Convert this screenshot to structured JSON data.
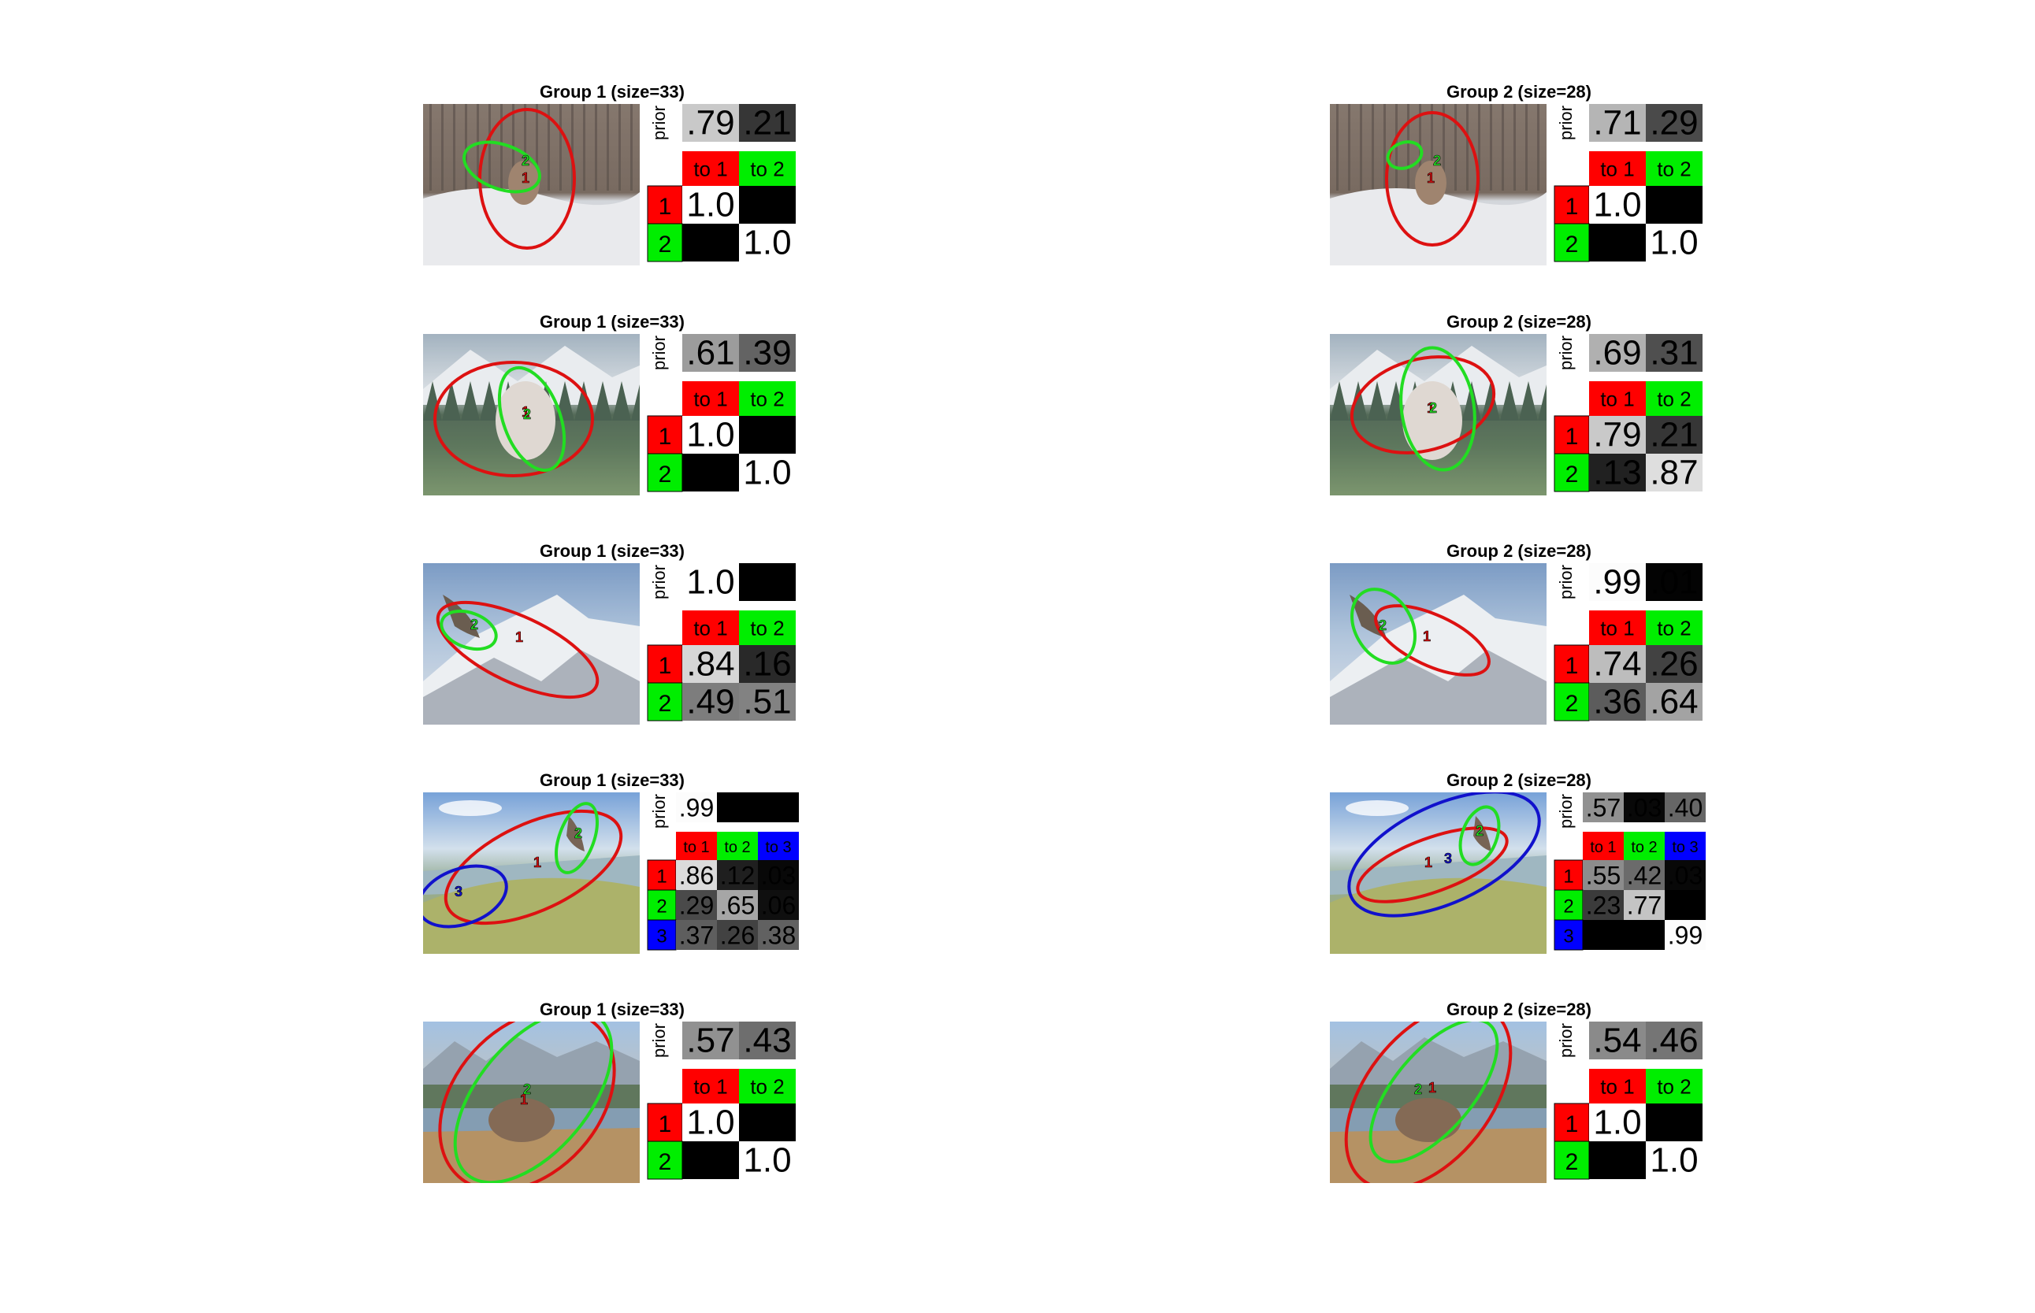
{
  "colors": {
    "state1": "#ff0000",
    "state2": "#00ee00",
    "state3": "#0000ff",
    "ellipse1": "#dd1111",
    "ellipse2": "#22dd22",
    "ellipse3": "#1111cc"
  },
  "prior_label": "prior",
  "panels": [
    {
      "group": 1,
      "title": "Group 1 (size=33)",
      "scene": "snow-deer",
      "prior": [
        ".79",
        ".21"
      ],
      "prior_vals": [
        0.79,
        0.21
      ],
      "headers": [
        "to 1",
        "to 2"
      ],
      "rows": [
        "1",
        "2"
      ],
      "matrix": [
        [
          "1.0",
          ""
        ],
        [
          "",
          "1.0"
        ]
      ],
      "matrix_vals": [
        [
          1.0,
          0
        ],
        [
          0,
          1.0
        ]
      ],
      "markers": [
        "1",
        "2"
      ]
    },
    {
      "group": 2,
      "title": "Group 2 (size=28)",
      "scene": "snow-deer",
      "prior": [
        ".71",
        ".29"
      ],
      "prior_vals": [
        0.71,
        0.29
      ],
      "headers": [
        "to 1",
        "to 2"
      ],
      "rows": [
        "1",
        "2"
      ],
      "matrix": [
        [
          "1.0",
          ""
        ],
        [
          "",
          "1.0"
        ]
      ],
      "matrix_vals": [
        [
          1.0,
          0
        ],
        [
          0,
          1.0
        ]
      ],
      "markers": [
        "1",
        "2"
      ]
    },
    {
      "group": 1,
      "title": "Group 1 (size=33)",
      "scene": "meadow-cow",
      "prior": [
        ".61",
        ".39"
      ],
      "prior_vals": [
        0.61,
        0.39
      ],
      "headers": [
        "to 1",
        "to 2"
      ],
      "rows": [
        "1",
        "2"
      ],
      "matrix": [
        [
          "1.0",
          ""
        ],
        [
          "",
          "1.0"
        ]
      ],
      "matrix_vals": [
        [
          1.0,
          0
        ],
        [
          0,
          1.0
        ]
      ],
      "markers": [
        "1",
        "2"
      ]
    },
    {
      "group": 2,
      "title": "Group 2 (size=28)",
      "scene": "meadow-cow",
      "prior": [
        ".69",
        ".31"
      ],
      "prior_vals": [
        0.69,
        0.31
      ],
      "headers": [
        "to 1",
        "to 2"
      ],
      "rows": [
        "1",
        "2"
      ],
      "matrix": [
        [
          ".79",
          ".21"
        ],
        [
          ".13",
          ".87"
        ]
      ],
      "matrix_vals": [
        [
          0.79,
          0.21
        ],
        [
          0.13,
          0.87
        ]
      ],
      "markers": [
        "1",
        "2"
      ]
    },
    {
      "group": 1,
      "title": "Group 1 (size=33)",
      "scene": "eagle-mountain",
      "prior": [
        "1.0",
        ""
      ],
      "prior_vals": [
        1.0,
        0
      ],
      "headers": [
        "to 1",
        "to 2"
      ],
      "rows": [
        "1",
        "2"
      ],
      "matrix": [
        [
          ".84",
          ".16"
        ],
        [
          ".49",
          ".51"
        ]
      ],
      "matrix_vals": [
        [
          0.84,
          0.16
        ],
        [
          0.49,
          0.51
        ]
      ],
      "markers": [
        "1",
        "2"
      ]
    },
    {
      "group": 2,
      "title": "Group 2 (size=28)",
      "scene": "eagle-mountain",
      "prior": [
        ".99",
        ".01"
      ],
      "prior_vals": [
        0.99,
        0.01
      ],
      "headers": [
        "to 1",
        "to 2"
      ],
      "rows": [
        "1",
        "2"
      ],
      "matrix": [
        [
          ".74",
          ".26"
        ],
        [
          ".36",
          ".64"
        ]
      ],
      "matrix_vals": [
        [
          0.74,
          0.26
        ],
        [
          0.36,
          0.64
        ]
      ],
      "markers": [
        "1",
        "2"
      ]
    },
    {
      "group": 1,
      "title": "Group 1 (size=33)",
      "scene": "lake-eagle",
      "prior": [
        ".99",
        "",
        ""
      ],
      "prior_vals": [
        0.99,
        0,
        0
      ],
      "headers": [
        "to 1",
        "to 2",
        "to 3"
      ],
      "rows": [
        "1",
        "2",
        "3"
      ],
      "matrix": [
        [
          ".86",
          ".12",
          ".03"
        ],
        [
          ".29",
          ".65",
          ".06"
        ],
        [
          ".37",
          ".26",
          ".38"
        ]
      ],
      "matrix_vals": [
        [
          0.86,
          0.12,
          0.03
        ],
        [
          0.29,
          0.65,
          0.06
        ],
        [
          0.37,
          0.26,
          0.38
        ]
      ],
      "markers": [
        "1",
        "2",
        "3"
      ]
    },
    {
      "group": 2,
      "title": "Group 2 (size=28)",
      "scene": "lake-eagle",
      "prior": [
        ".57",
        ".03",
        ".40"
      ],
      "prior_vals": [
        0.57,
        0.03,
        0.4
      ],
      "headers": [
        "to 1",
        "to 2",
        "to 3"
      ],
      "rows": [
        "1",
        "2",
        "3"
      ],
      "matrix": [
        [
          ".55",
          ".42",
          ".03"
        ],
        [
          ".23",
          ".77",
          ""
        ],
        [
          "",
          "",
          ".99"
        ]
      ],
      "matrix_vals": [
        [
          0.55,
          0.42,
          0.03
        ],
        [
          0.23,
          0.77,
          0
        ],
        [
          0,
          0,
          0.99
        ]
      ],
      "markers": [
        "1",
        "2",
        "3"
      ]
    },
    {
      "group": 1,
      "title": "Group 1 (size=33)",
      "scene": "elk-lake",
      "prior": [
        ".57",
        ".43"
      ],
      "prior_vals": [
        0.57,
        0.43
      ],
      "headers": [
        "to 1",
        "to 2"
      ],
      "rows": [
        "1",
        "2"
      ],
      "matrix": [
        [
          "1.0",
          ""
        ],
        [
          "",
          "1.0"
        ]
      ],
      "matrix_vals": [
        [
          1.0,
          0
        ],
        [
          0,
          1.0
        ]
      ],
      "markers": [
        "1",
        "2"
      ]
    },
    {
      "group": 2,
      "title": "Group 2 (size=28)",
      "scene": "elk-lake",
      "prior": [
        ".54",
        ".46"
      ],
      "prior_vals": [
        0.54,
        0.46
      ],
      "headers": [
        "to 1",
        "to 2"
      ],
      "rows": [
        "1",
        "2"
      ],
      "matrix": [
        [
          "1.0",
          ""
        ],
        [
          "",
          "1.0"
        ]
      ],
      "matrix_vals": [
        [
          1.0,
          0
        ],
        [
          0,
          1.0
        ]
      ],
      "markers": [
        "1",
        "2"
      ]
    }
  ]
}
